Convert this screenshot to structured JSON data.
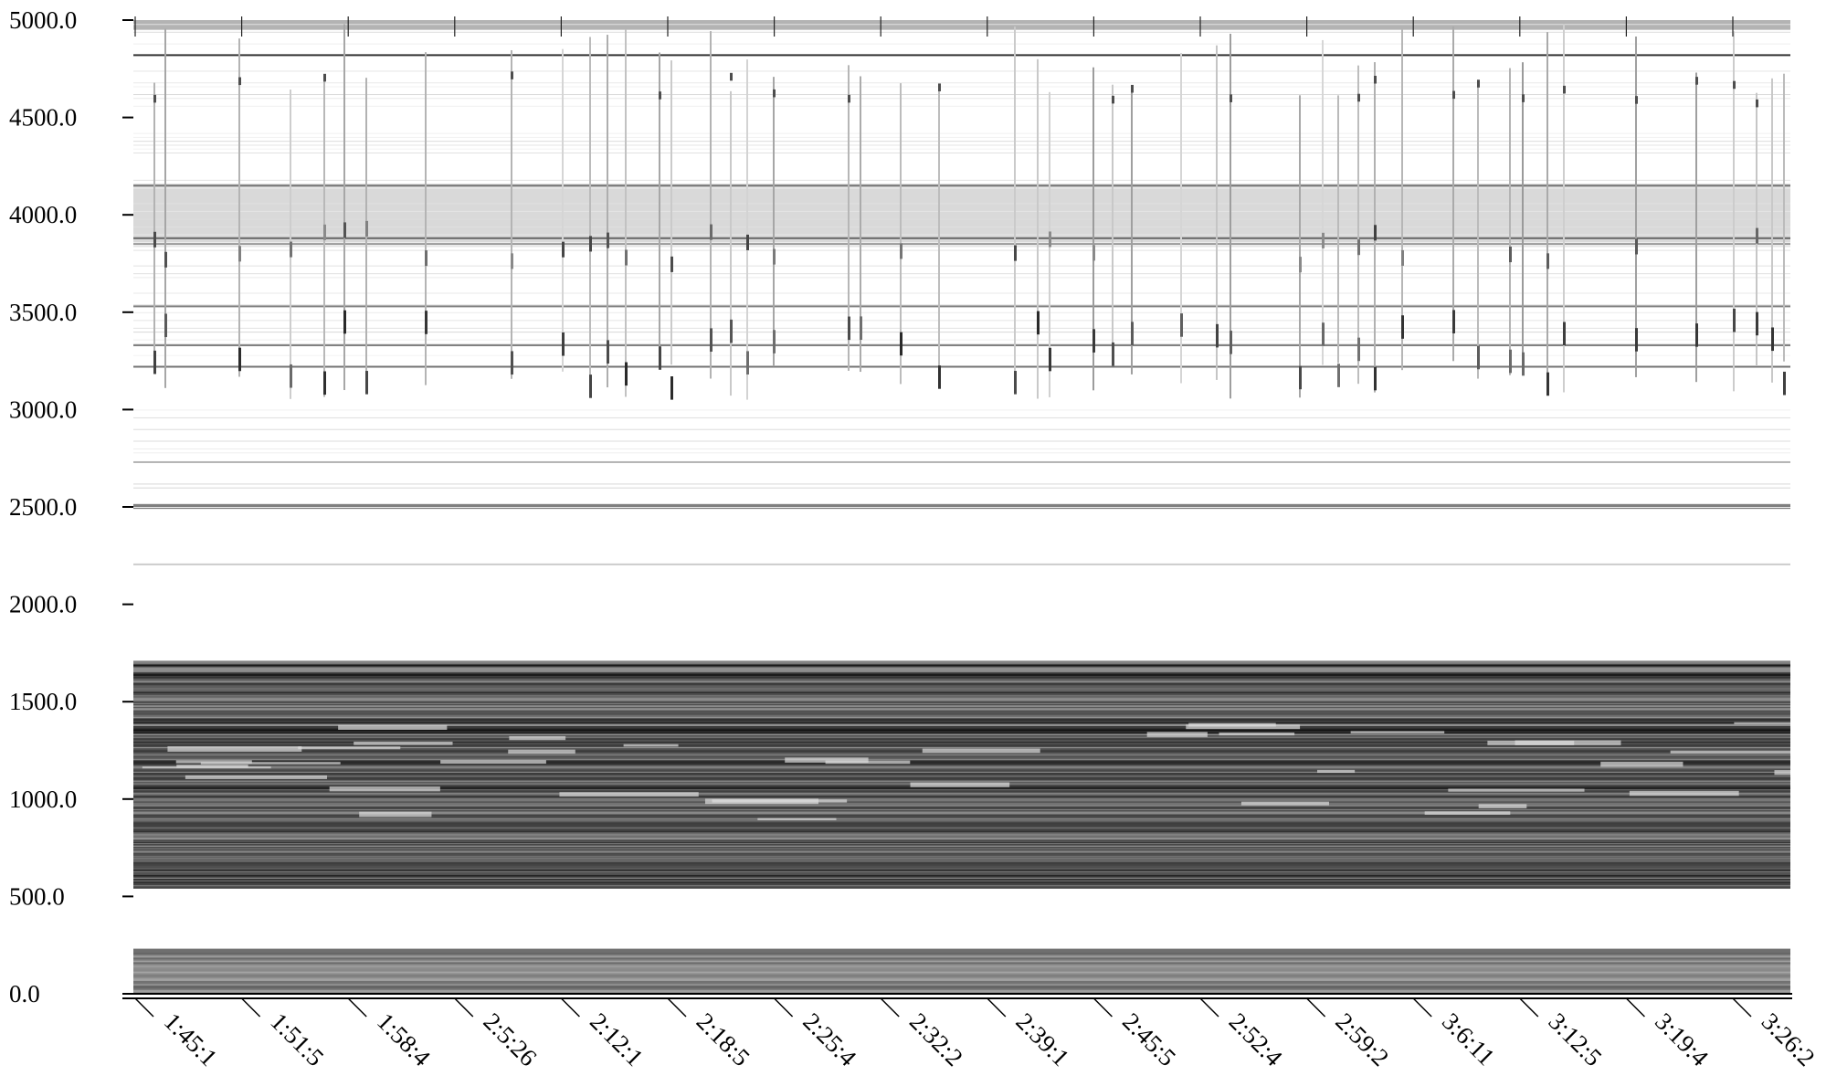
{
  "chart_data": {
    "type": "heatmap",
    "title": "",
    "xlabel": "",
    "ylabel": "",
    "colormap": "grayscale (white = low energy, black = high energy)",
    "grid": false,
    "legend": "none",
    "ylim": [
      0,
      5000
    ],
    "y_ticks": [
      {
        "value": 0,
        "label": "0.0"
      },
      {
        "value": 500,
        "label": "500.0"
      },
      {
        "value": 1000,
        "label": "1000.0"
      },
      {
        "value": 1500,
        "label": "1500.0"
      },
      {
        "value": 2000,
        "label": "2000.0"
      },
      {
        "value": 2500,
        "label": "2500.0"
      },
      {
        "value": 3000,
        "label": "3000.0"
      },
      {
        "value": 3500,
        "label": "3500.0"
      },
      {
        "value": 4000,
        "label": "4000.0"
      },
      {
        "value": 4500,
        "label": "4500.0"
      },
      {
        "value": 5000,
        "label": "5000.0"
      }
    ],
    "x_ticks": [
      "1:45:1",
      "1:51:5",
      "1:58:4",
      "2:5:26",
      "2:12:1",
      "2:18:5",
      "2:25:4",
      "2:32:2",
      "2:39:1",
      "2:45:5",
      "2:52:4",
      "2:59:2",
      "3:6:11",
      "3:12:5",
      "3:19:4",
      "3:26:2"
    ],
    "bands": [
      {
        "y_range": [
          0,
          230
        ],
        "intensity": 0.45
      },
      {
        "y_range": [
          540,
          1710
        ],
        "intensity": 0.65
      },
      {
        "y_range": [
          2490,
          2515
        ],
        "intensity": 0.5
      },
      {
        "y_range": [
          3850,
          4150
        ],
        "intensity": 0.15
      },
      {
        "y_range": [
          4950,
          5000
        ],
        "intensity": 0.3
      }
    ],
    "lines": [
      {
        "y": 4820,
        "intensity": 0.8
      },
      {
        "y": 4150,
        "intensity": 0.55
      },
      {
        "y": 3880,
        "intensity": 0.6
      },
      {
        "y": 3850,
        "intensity": 0.4
      },
      {
        "y": 3530,
        "intensity": 0.5
      },
      {
        "y": 3330,
        "intensity": 0.5
      },
      {
        "y": 3220,
        "intensity": 0.55
      },
      {
        "y": 2730,
        "intensity": 0.3
      },
      {
        "y": 2205,
        "intensity": 0.2
      }
    ]
  }
}
